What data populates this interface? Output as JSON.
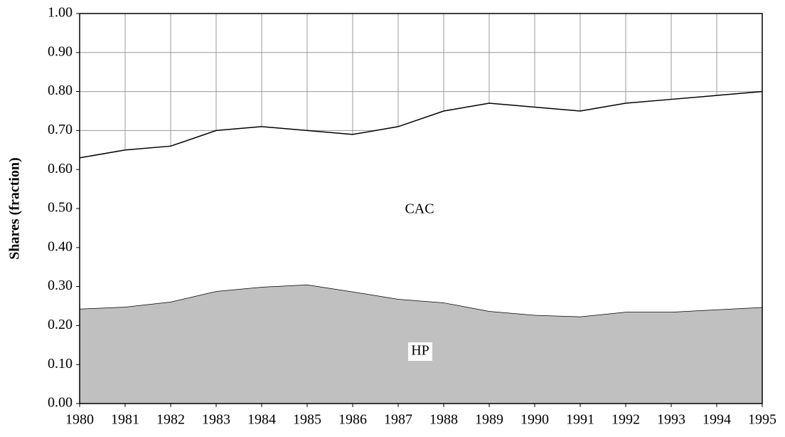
{
  "chart_data": {
    "type": "stacked_area",
    "ylabel": "Shares (fraction)",
    "x": [
      1980,
      1981,
      1982,
      1983,
      1984,
      1985,
      1986,
      1987,
      1988,
      1989,
      1990,
      1991,
      1992,
      1993,
      1994,
      1995
    ],
    "xlim": [
      1980,
      1995
    ],
    "xticks": [
      1980,
      1981,
      1982,
      1983,
      1984,
      1985,
      1986,
      1987,
      1988,
      1989,
      1990,
      1991,
      1992,
      1993,
      1994,
      1995
    ],
    "ylim": [
      0,
      1
    ],
    "yticks": [
      {
        "value": 0,
        "label": "0.00"
      },
      {
        "value": 0.1,
        "label": "0.10"
      },
      {
        "value": 0.2,
        "label": "0.20"
      },
      {
        "value": 0.3,
        "label": "0.30"
      },
      {
        "value": 0.4,
        "label": "0.40"
      },
      {
        "value": 0.5,
        "label": "0.50"
      },
      {
        "value": 0.6,
        "label": "0.60"
      },
      {
        "value": 0.7,
        "label": "0.70"
      },
      {
        "value": 0.8,
        "label": "0.80"
      },
      {
        "value": 0.9,
        "label": "0.90"
      },
      {
        "value": 1,
        "label": "1.00"
      }
    ],
    "grid": true,
    "series": [
      {
        "name": "HP",
        "color": "#c0c0c0",
        "values": [
          0.243,
          0.248,
          0.261,
          0.288,
          0.299,
          0.305,
          0.287,
          0.268,
          0.259,
          0.237,
          0.227,
          0.223,
          0.235,
          0.235,
          0.241,
          0.247
        ]
      },
      {
        "name": "CAC",
        "color": "#ffffff",
        "values": [
          0.387,
          0.402,
          0.399,
          0.412,
          0.411,
          0.395,
          0.403,
          0.442,
          0.491,
          0.533,
          0.533,
          0.527,
          0.535,
          0.545,
          0.549,
          0.553
        ]
      }
    ]
  }
}
